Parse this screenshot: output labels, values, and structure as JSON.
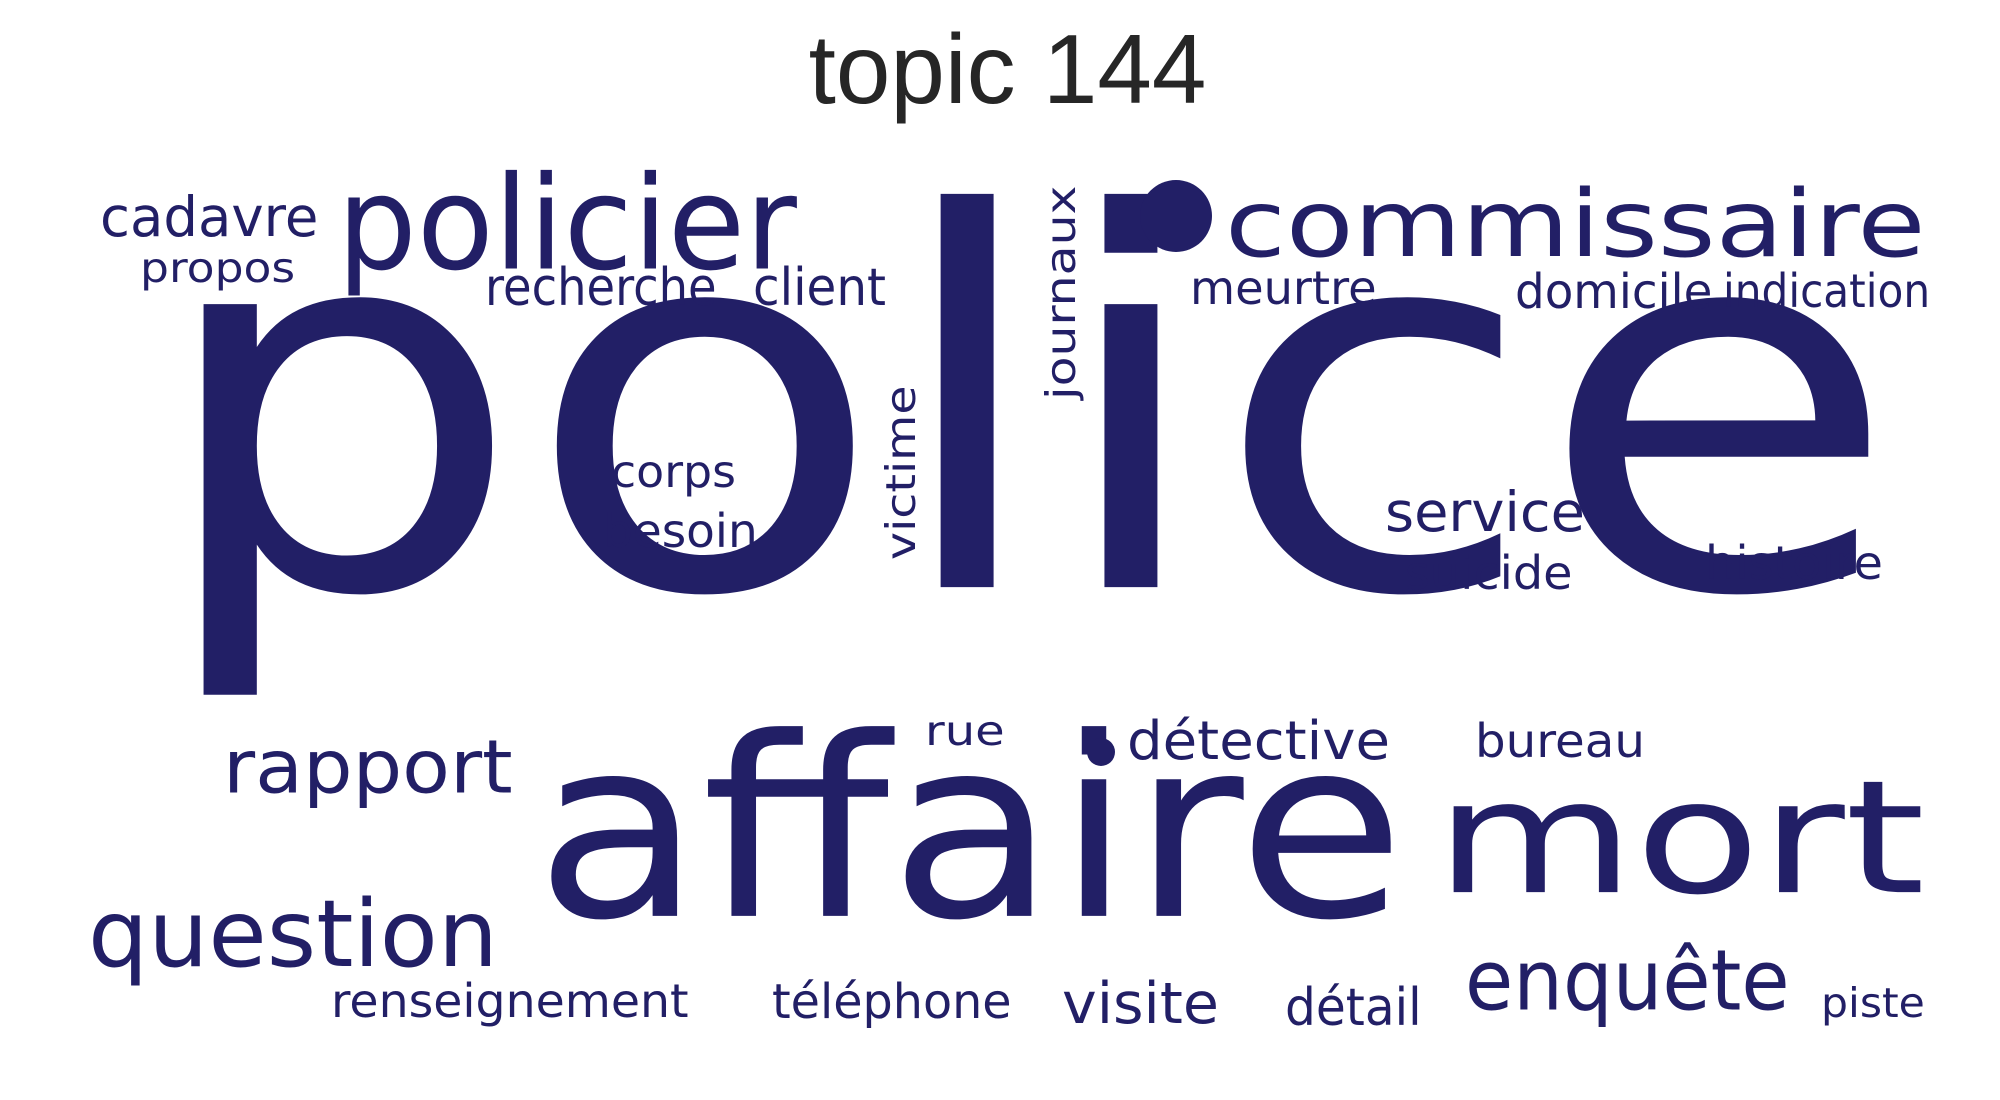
{
  "title": "topic 144",
  "colors": {
    "word": "#221f66",
    "title": "#262626",
    "background": "#ffffff"
  },
  "words": [
    {
      "text": "police",
      "orientation": "horizontal"
    },
    {
      "text": "affaire",
      "orientation": "horizontal"
    },
    {
      "text": "mort",
      "orientation": "horizontal"
    },
    {
      "text": "policier",
      "orientation": "horizontal"
    },
    {
      "text": "commissaire",
      "orientation": "horizontal"
    },
    {
      "text": "question",
      "orientation": "horizontal"
    },
    {
      "text": "rapport",
      "orientation": "horizontal"
    },
    {
      "text": "enquête",
      "orientation": "horizontal"
    },
    {
      "text": "visite",
      "orientation": "horizontal"
    },
    {
      "text": "service",
      "orientation": "horizontal"
    },
    {
      "text": "détective",
      "orientation": "horizontal"
    },
    {
      "text": "besoin",
      "orientation": "horizontal"
    },
    {
      "text": "cadavre",
      "orientation": "horizontal"
    },
    {
      "text": "corps",
      "orientation": "horizontal"
    },
    {
      "text": "suicide",
      "orientation": "horizontal"
    },
    {
      "text": "histoire",
      "orientation": "horizontal"
    },
    {
      "text": "recherche",
      "orientation": "horizontal"
    },
    {
      "text": "client",
      "orientation": "horizontal"
    },
    {
      "text": "meurtre",
      "orientation": "horizontal"
    },
    {
      "text": "domicile",
      "orientation": "horizontal"
    },
    {
      "text": "indication",
      "orientation": "horizontal"
    },
    {
      "text": "bureau",
      "orientation": "horizontal"
    },
    {
      "text": "téléphone",
      "orientation": "horizontal"
    },
    {
      "text": "renseignement",
      "orientation": "horizontal"
    },
    {
      "text": "détail",
      "orientation": "horizontal"
    },
    {
      "text": "propos",
      "orientation": "horizontal"
    },
    {
      "text": "rue",
      "orientation": "horizontal"
    },
    {
      "text": "piste",
      "orientation": "horizontal"
    },
    {
      "text": "victime",
      "orientation": "vertical"
    },
    {
      "text": "journaux",
      "orientation": "vertical"
    }
  ]
}
